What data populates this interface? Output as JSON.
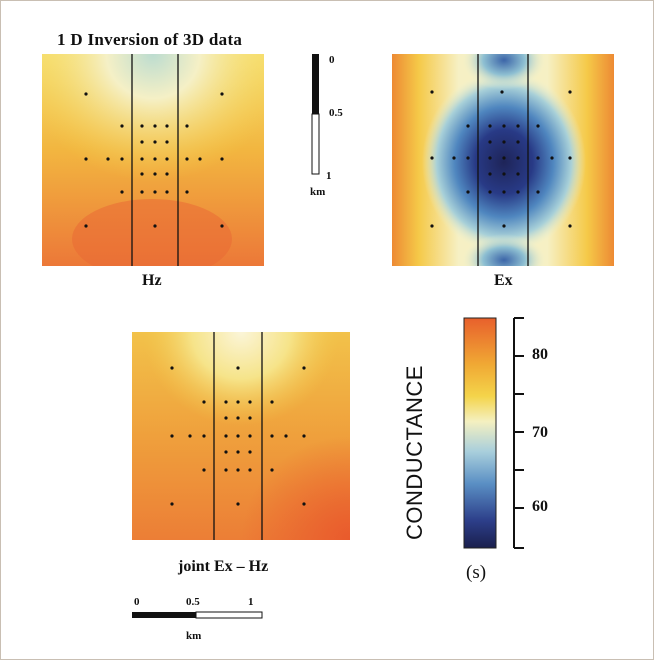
{
  "title": "1 D  Inversion of 3D data",
  "panels": {
    "hz": {
      "label": "Hz"
    },
    "ex": {
      "label": "Ex"
    },
    "joint": {
      "label": "joint Ex – Hz"
    }
  },
  "depth_scale": {
    "top": "0",
    "mid": "0.5",
    "bottom": "1",
    "unit": "km"
  },
  "horizontal_scale": {
    "left": "0",
    "mid": "0.5",
    "right": "1",
    "unit": "km"
  },
  "colorbar": {
    "title": "CONDUCTANCE",
    "unit": "(s)",
    "ticks": [
      "80",
      "70",
      "60"
    ],
    "colors": [
      "#1a1f4d",
      "#2d3f8a",
      "#5a8fc4",
      "#a9cfdc",
      "#f4f0c0",
      "#f4d44a",
      "#f0a834",
      "#e8602c"
    ]
  }
}
